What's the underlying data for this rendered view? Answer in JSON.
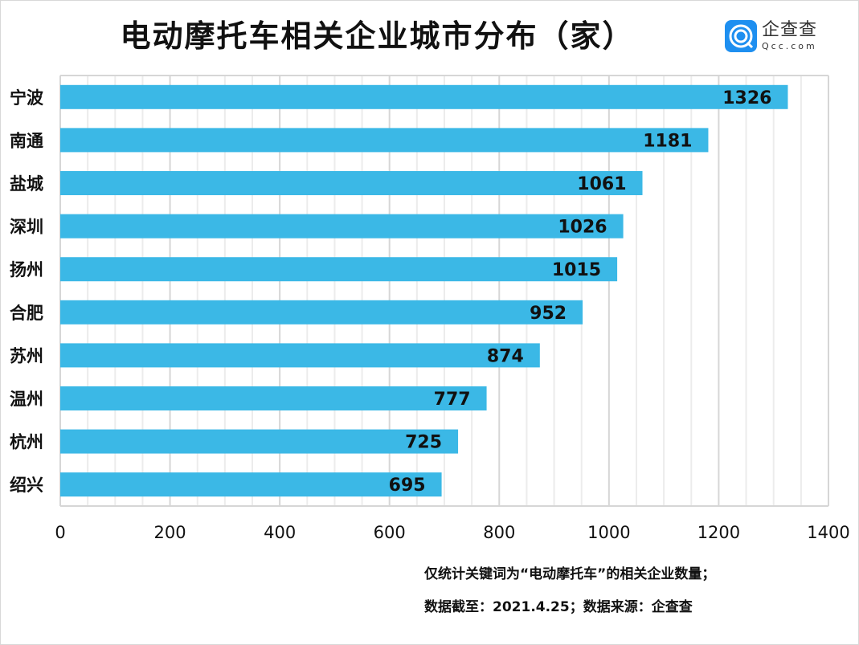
{
  "logo": {
    "cn": "企查查",
    "en": "Qcc.com"
  },
  "chart_data": {
    "type": "bar",
    "orientation": "horizontal",
    "title": "电动摩托车相关企业城市分布（家）",
    "categories": [
      "宁波",
      "南通",
      "盐城",
      "深圳",
      "扬州",
      "合肥",
      "苏州",
      "温州",
      "杭州",
      "绍兴"
    ],
    "values": [
      1326,
      1181,
      1061,
      1026,
      1015,
      952,
      874,
      777,
      725,
      695
    ],
    "xlim": [
      0,
      1400
    ],
    "xticks": [
      "0",
      "200",
      "400",
      "600",
      "800",
      "1000",
      "1200",
      "1400"
    ],
    "grid": true,
    "bar_color": "#3bb8e6",
    "data_labels": true
  },
  "notes": [
    "仅统计关键词为“电动摩托车”的相关企业数量；",
    "数据截至：2021.4.25；数据来源：企查查"
  ]
}
